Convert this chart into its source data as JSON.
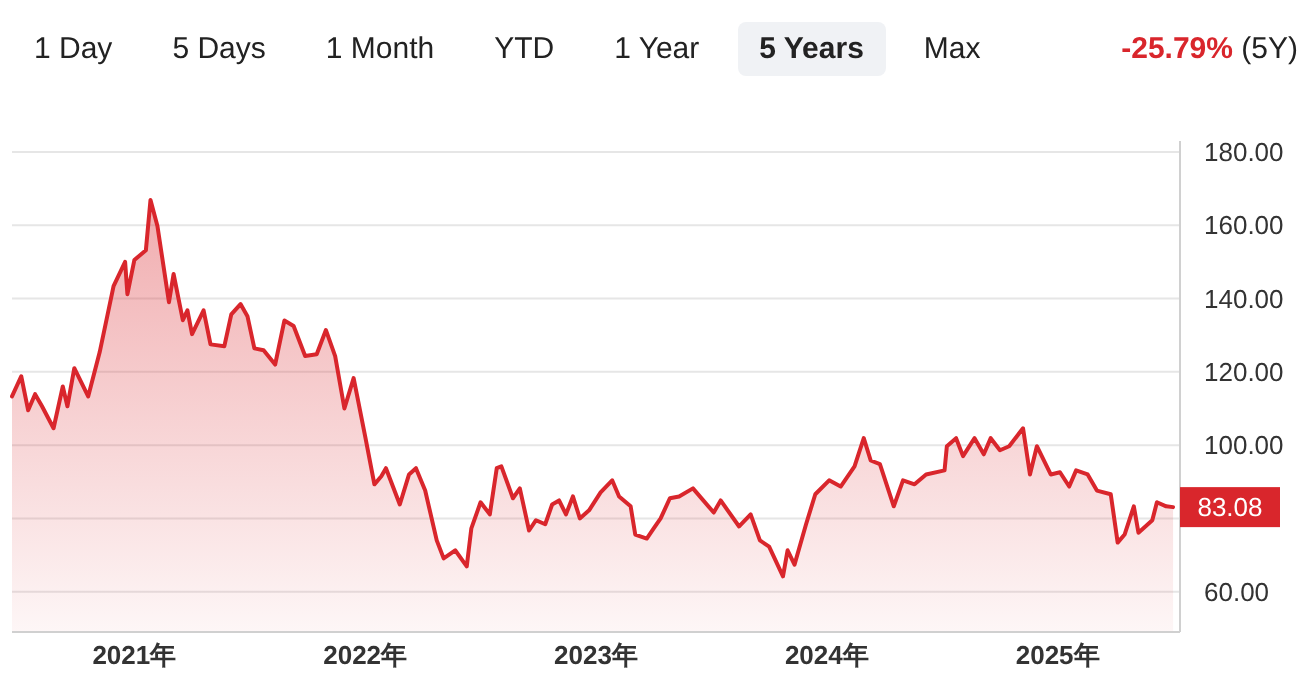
{
  "chart_data": {
    "type": "area",
    "subtitle": "-25.79% (5Y)",
    "annotations": [
      "1 Day",
      "5 Days",
      "1 Month",
      "YTD",
      "1 Year",
      "5 Years",
      "Max",
      "83.08"
    ],
    "x": [
      2020.47,
      2020.51,
      2020.54,
      2020.57,
      2020.6,
      2020.65,
      2020.69,
      2020.71,
      2020.74,
      2020.8,
      2020.85,
      2020.91,
      2020.96,
      2020.97,
      2021.0,
      2021.05,
      2021.07,
      2021.1,
      2021.15,
      2021.17,
      2021.21,
      2021.23,
      2021.25,
      2021.3,
      2021.33,
      2021.39,
      2021.42,
      2021.46,
      2021.49,
      2021.52,
      2021.56,
      2021.61,
      2021.65,
      2021.69,
      2021.74,
      2021.79,
      2021.83,
      2021.87,
      2021.91,
      2021.95,
      2022.0,
      2022.04,
      2022.07,
      2022.09,
      2022.15,
      2022.19,
      2022.22,
      2022.26,
      2022.31,
      2022.34,
      2022.39,
      2022.44,
      2022.46,
      2022.5,
      2022.54,
      2022.57,
      2022.59,
      2022.64,
      2022.67,
      2022.71,
      2022.74,
      2022.78,
      2022.81,
      2022.84,
      2022.87,
      2022.9,
      2022.93,
      2022.97,
      2023.02,
      2023.07,
      2023.1,
      2023.15,
      2023.17,
      2023.22,
      2023.25,
      2023.28,
      2023.32,
      2023.36,
      2023.42,
      2023.51,
      2023.54,
      2023.62,
      2023.67,
      2023.71,
      2023.75,
      2023.81,
      2023.83,
      2023.86,
      2023.91,
      2023.95,
      2024.01,
      2024.06,
      2024.12,
      2024.16,
      2024.19,
      2024.23,
      2024.29,
      2024.33,
      2024.38,
      2024.43,
      2024.51,
      2024.52,
      2024.56,
      2024.59,
      2024.64,
      2024.68,
      2024.71,
      2024.75,
      2024.79,
      2024.85,
      2024.88,
      2024.91,
      2024.97,
      2025.01,
      2025.05,
      2025.08,
      2025.13,
      2025.17,
      2025.23,
      2025.26,
      2025.29,
      2025.33,
      2025.35,
      2025.41,
      2025.43,
      2025.47,
      2025.5
    ],
    "series": [
      {
        "color": "#d9262c",
        "values": [
          113.3,
          118.8,
          109.5,
          113.9,
          110.6,
          104.6,
          116,
          110.6,
          121,
          113.3,
          125.4,
          143.4,
          150,
          141.2,
          150.5,
          153.2,
          166.9,
          159.8,
          139,
          146.7,
          134.1,
          136.8,
          130.3,
          136.8,
          127.5,
          127,
          135.7,
          138.5,
          135.2,
          126.4,
          125.9,
          122,
          134,
          132.5,
          124.3,
          124.8,
          131.4,
          124.3,
          110,
          118.3,
          102.4,
          89.3,
          91.5,
          93.7,
          83.8,
          92,
          93.7,
          87.6,
          74,
          69.1,
          71.3,
          66.9,
          77.3,
          84.4,
          81.1,
          93.7,
          94.2,
          85.5,
          88.2,
          76.7,
          79.5,
          78.4,
          83.8,
          84.9,
          81.1,
          86,
          80,
          82.2,
          87.1,
          90.4,
          86,
          83.3,
          75.6,
          74.5,
          77.3,
          80,
          85.5,
          86,
          88.2,
          81.6,
          84.9,
          77.8,
          81.1,
          74,
          72.3,
          64.2,
          71.3,
          67.4,
          78.4,
          86.6,
          90.4,
          88.7,
          94.2,
          101.9,
          95.8,
          94.8,
          83.3,
          90.4,
          89.3,
          92,
          93.1,
          99.7,
          101.9,
          97,
          101.9,
          97.5,
          101.9,
          98.6,
          99.7,
          104.6,
          92,
          99.7,
          92,
          92.6,
          88.7,
          93.1,
          92,
          87.6,
          86.6,
          73.4,
          75.6,
          83.3,
          76.1,
          79.5,
          84.4,
          83.3,
          83.08
        ]
      }
    ],
    "xlim": [
      2020.47,
      2025.53
    ],
    "xticks": [
      {
        "value": 2021,
        "label": "2021年"
      },
      {
        "value": 2022,
        "label": "2022年"
      },
      {
        "value": 2023,
        "label": "2023年"
      },
      {
        "value": 2024,
        "label": "2024年"
      },
      {
        "value": 2025,
        "label": "2025年"
      }
    ],
    "ylim": [
      49,
      183
    ],
    "yticks": [
      {
        "value": 60,
        "label": "60.00"
      },
      {
        "value": 80,
        "label": null
      },
      {
        "value": 100,
        "label": "100.00"
      },
      {
        "value": 120,
        "label": "120.00"
      },
      {
        "value": 140,
        "label": "140.00"
      },
      {
        "value": 160,
        "label": "160.00"
      },
      {
        "value": 180,
        "label": "180.00"
      }
    ],
    "grid": "y"
  }
}
